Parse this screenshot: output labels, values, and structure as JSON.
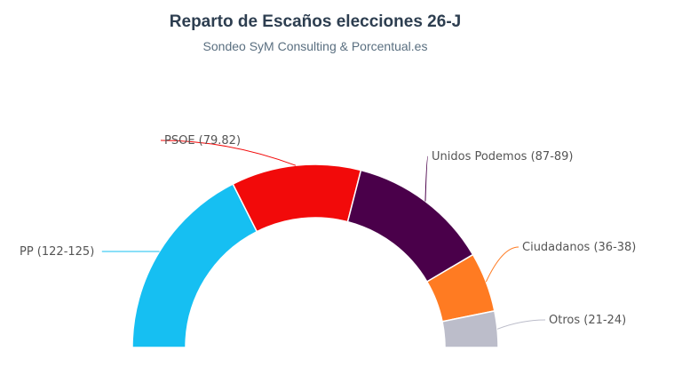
{
  "chart_data": {
    "type": "pie",
    "variant": "semi-donut",
    "title": "Reparto de Escaños elecciones 26-J",
    "subtitle": "Sondeo SyM Consulting & Porcentual.es",
    "slices": [
      {
        "label": "PP (122-125)",
        "min": 122,
        "max": 125,
        "color": "#16bff2"
      },
      {
        "label": "PSOE (79.82)",
        "min": 79,
        "max": 82,
        "color": "#f20a0a"
      },
      {
        "label": "Unidos Podemos (87-89)",
        "min": 87,
        "max": 89,
        "color": "#4a004a"
      },
      {
        "label": "Ciudadanos (36-38)",
        "min": 36,
        "max": 38,
        "color": "#ff7b22"
      },
      {
        "label": "Otros (21-24)",
        "min": 21,
        "max": 24,
        "color": "#bcbdca"
      }
    ]
  }
}
